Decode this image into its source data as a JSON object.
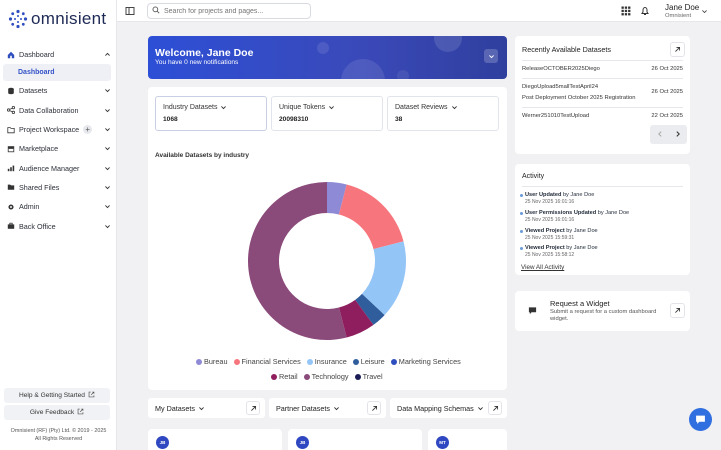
{
  "app": {
    "brand": "omnisient"
  },
  "sidebar": {
    "items": [
      {
        "label": "Dashboard",
        "icon": "home-icon"
      },
      {
        "label": "Datasets",
        "icon": "database-icon"
      },
      {
        "label": "Data Collaboration",
        "icon": "share-icon"
      },
      {
        "label": "Project Workspace",
        "icon": "folder-icon"
      },
      {
        "label": "Marketplace",
        "icon": "store-icon"
      },
      {
        "label": "Audience Manager",
        "icon": "chart-icon"
      },
      {
        "label": "Shared Files",
        "icon": "shared-folder-icon"
      },
      {
        "label": "Admin",
        "icon": "gear-icon"
      },
      {
        "label": "Back Office",
        "icon": "briefcase-icon"
      }
    ],
    "sub_item": "Dashboard",
    "plus": "+",
    "help_label": "Help & Getting Started",
    "feedback_label": "Give Feedback",
    "copyright_line1": "Omnisient (RF) (Pty) Ltd. © 2019 - 2025",
    "copyright_line2": "All Rights Reserved"
  },
  "topbar": {
    "search_placeholder": "Search for projects and pages...",
    "user_name": "Jane Doe",
    "user_org": "Omnisient"
  },
  "welcome": {
    "title": "Welcome, Jane Doe",
    "subtitle": "You have 0 new notifications"
  },
  "stats": [
    {
      "label": "Industry Datasets",
      "value": "1068"
    },
    {
      "label": "Unique Tokens",
      "value": "20098310"
    },
    {
      "label": "Dataset Reviews",
      "value": "38"
    }
  ],
  "chart_section_title": "Available Datasets by industry",
  "chart_data": {
    "type": "pie",
    "title": "Available Datasets by industry",
    "categories": [
      "Bureau",
      "Financial Services",
      "Insurance",
      "Leisure",
      "Marketing Services",
      "Retail",
      "Technology",
      "Travel"
    ],
    "values": [
      4,
      17,
      16,
      3,
      0,
      6,
      54,
      0
    ],
    "colors": [
      "#8f8ad6",
      "#f7767d",
      "#94c5f7",
      "#305d9c",
      "#2f4fbf",
      "#8f1e5e",
      "#8a4a7a",
      "#1a1d55"
    ],
    "legend_position": "bottom"
  },
  "recent": {
    "title": "Recently Available Datasets",
    "rows": [
      {
        "name": "ReleaseOCTOBER2025Diego",
        "date": "26 Oct 2025"
      },
      {
        "name": "DiegoUpload5mallTestApril24",
        "date": "26 Oct 2025",
        "sub": "Post Deployment October 2025 Registration"
      },
      {
        "name": "Werner251010TestUpload",
        "date": "22 Oct 2025"
      }
    ]
  },
  "activity": {
    "title": "Activity",
    "items": [
      {
        "action": "User Updated",
        "by": "by Jane Doe",
        "time": "25 Nov 2025 16:01:16"
      },
      {
        "action": "User Permissions Updated",
        "by": "by Jane Doe",
        "time": "25 Nov 2025 16:01:16"
      },
      {
        "action": "Viewed Project",
        "by": "by Jane Doe",
        "time": "25 Nov 2025 15:59:31"
      },
      {
        "action": "Viewed Project",
        "by": "by Jane Doe",
        "time": "25 Nov 2025 15:58:12"
      }
    ],
    "view_all": "View All Activity"
  },
  "widget": {
    "title": "Request a Widget",
    "desc": "Submit a request for a custom dashboard widget."
  },
  "bottom_tabs": [
    {
      "label": "My Datasets"
    },
    {
      "label": "Partner Datasets"
    },
    {
      "label": "Data Mapping Schemas"
    }
  ],
  "avatars": [
    "JB",
    "JB",
    "MT"
  ]
}
